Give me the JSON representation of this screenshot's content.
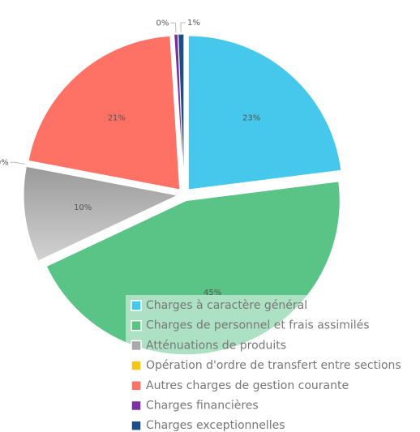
{
  "chart_data": {
    "type": "pie",
    "categories": [
      "Charges à caractère général",
      "Charges de personnel et frais assimilés",
      "Atténuations de produits",
      "Opération d'ordre de transfert entre sections",
      "Autres charges de gestion courante",
      "Charges financières",
      "Charges exceptionnelles"
    ],
    "values": [
      23,
      45,
      10,
      0,
      21,
      0.4,
      0.6
    ],
    "value_labels": [
      "23%",
      "45%",
      "10%",
      "0%",
      "21%",
      "0%",
      "1%"
    ],
    "colors": [
      "#45c8ec",
      "#5ac386",
      "#a9a9a9",
      "#f5c518",
      "#fe7266",
      "#7b2fa0",
      "#1a4f8a"
    ],
    "legend": "bottom-right"
  }
}
